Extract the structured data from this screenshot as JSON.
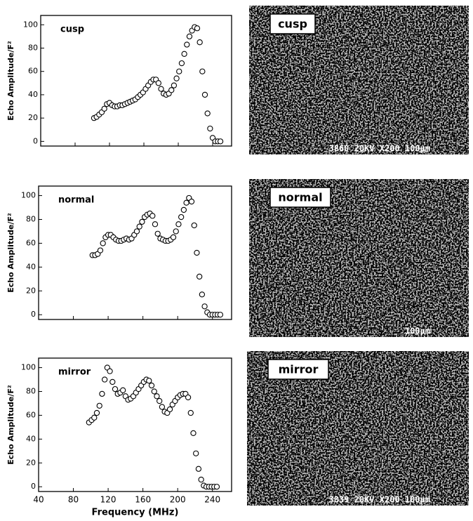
{
  "chart_data": [
    {
      "type": "scatter",
      "title": "cusp",
      "ylabel": "Echo Amplitude/F²",
      "marker_color": "#000000",
      "x": [
        102,
        105,
        108,
        111,
        114,
        117,
        120,
        123,
        126,
        129,
        132,
        135,
        138,
        141,
        144,
        147,
        150,
        153,
        156,
        159,
        162,
        165,
        168,
        171,
        174,
        177,
        180,
        183,
        186,
        189,
        192,
        195,
        198,
        201,
        204,
        207,
        210,
        213,
        216,
        219,
        222,
        225,
        228,
        231,
        234,
        237,
        240,
        243,
        246,
        249
      ],
      "values": [
        20,
        21,
        23,
        25,
        28,
        32,
        33,
        31,
        30,
        30,
        31,
        31,
        32,
        33,
        34,
        35,
        36,
        38,
        40,
        42,
        45,
        48,
        51,
        53,
        53,
        50,
        45,
        41,
        40,
        41,
        44,
        48,
        54,
        60,
        67,
        75,
        83,
        90,
        95,
        98,
        97,
        85,
        60,
        40,
        24,
        11,
        3,
        0,
        0,
        0
      ],
      "xlim": [
        40,
        262
      ],
      "ylim": [
        -4,
        108
      ],
      "xticks": [
        40,
        80,
        120,
        160,
        200,
        240
      ],
      "yticks": [
        0,
        20,
        40,
        60,
        80,
        100
      ],
      "show_xtick_labels": false
    },
    {
      "type": "scatter",
      "title": "normal",
      "ylabel": "Echo Amplitude/F²",
      "marker_color": "#000000",
      "x": [
        102,
        105,
        108,
        111,
        114,
        117,
        120,
        123,
        126,
        129,
        132,
        135,
        138,
        141,
        144,
        147,
        150,
        153,
        156,
        159,
        162,
        165,
        168,
        171,
        174,
        177,
        180,
        183,
        186,
        189,
        192,
        195,
        198,
        201,
        204,
        207,
        210,
        213,
        216,
        219,
        222,
        225,
        228,
        231,
        234,
        237,
        240,
        243,
        246,
        249
      ],
      "values": [
        50,
        50,
        51,
        54,
        60,
        65,
        67,
        67,
        65,
        63,
        62,
        62,
        63,
        64,
        63,
        64,
        67,
        70,
        74,
        78,
        82,
        84,
        85,
        83,
        76,
        68,
        64,
        63,
        62,
        62,
        63,
        65,
        70,
        76,
        82,
        88,
        94,
        98,
        95,
        75,
        52,
        32,
        17,
        7,
        2,
        0,
        0,
        0,
        0,
        0
      ],
      "xlim": [
        40,
        262
      ],
      "ylim": [
        -4,
        108
      ],
      "xticks": [
        40,
        80,
        120,
        160,
        200,
        240
      ],
      "yticks": [
        0,
        20,
        40,
        60,
        80,
        100
      ],
      "show_xtick_labels": false
    },
    {
      "type": "scatter",
      "title": "mirror",
      "ylabel": "Echo Amplitude/F²",
      "xlabel": "Frequency (MHz)",
      "marker_color": "#000000",
      "x": [
        98,
        101,
        104,
        107,
        110,
        113,
        116,
        119,
        122,
        125,
        128,
        131,
        134,
        137,
        140,
        143,
        146,
        149,
        152,
        155,
        158,
        161,
        164,
        167,
        170,
        173,
        176,
        179,
        182,
        185,
        188,
        191,
        194,
        197,
        200,
        203,
        206,
        209,
        212,
        215,
        218,
        221,
        224,
        227,
        230,
        233,
        236,
        239,
        242,
        245
      ],
      "values": [
        54,
        56,
        58,
        62,
        68,
        78,
        90,
        100,
        97,
        88,
        82,
        78,
        79,
        81,
        76,
        73,
        74,
        76,
        79,
        82,
        85,
        88,
        90,
        89,
        85,
        80,
        76,
        72,
        67,
        63,
        62,
        65,
        69,
        72,
        75,
        77,
        78,
        78,
        75,
        62,
        45,
        28,
        15,
        6,
        1,
        0,
        0,
        0,
        0,
        0
      ],
      "xlim": [
        40,
        262
      ],
      "ylim": [
        -4,
        108
      ],
      "xticks": [
        40,
        80,
        120,
        160,
        200,
        240
      ],
      "yticks": [
        0,
        20,
        40,
        60,
        80,
        100
      ],
      "show_xtick_labels": true
    }
  ],
  "images": [
    {
      "label": "cusp",
      "caption": "3860 20KV X200 100µm"
    },
    {
      "label": "normal",
      "caption": "100µm"
    },
    {
      "label": "mirror",
      "caption": "3839 20KV X200 100µm"
    }
  ]
}
